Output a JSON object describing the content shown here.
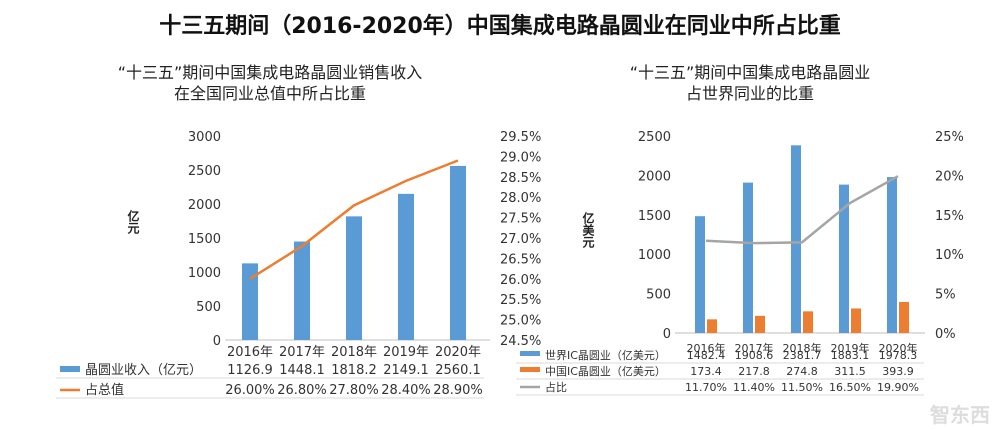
{
  "title": "十三五期间（2016-2020年）中国集成电路晶圆业在同业中所占比重",
  "chart_data": [
    {
      "type": "bar+line",
      "title_lines": [
        "“十三五”期间中国集成电路晶圆业销售收入",
        "在全国同业总值中所占比重"
      ],
      "ylabel": "亿元",
      "categories": [
        "2016年",
        "2017年",
        "2018年",
        "2019年",
        "2020年"
      ],
      "ylim": [
        0,
        3000
      ],
      "yticks": [
        "0",
        "500",
        "1000",
        "1500",
        "2000",
        "2500",
        "3000"
      ],
      "y2lim": [
        24.5,
        29.5
      ],
      "y2ticks": [
        "24.5%",
        "25.0%",
        "25.5%",
        "26.0%",
        "26.5%",
        "27.0%",
        "27.5%",
        "28.0%",
        "28.5%",
        "29.0%",
        "29.5%"
      ],
      "series": [
        {
          "name": "晶圆业收入（亿元）",
          "kind": "bar",
          "axis": "left",
          "color": "#5b9bd5",
          "values": [
            1126.9,
            1448.1,
            1818.2,
            2149.1,
            2560.1
          ],
          "labels": [
            "1126.9",
            "1448.1",
            "1818.2",
            "2149.1",
            "2560.1"
          ]
        },
        {
          "name": "占总值",
          "kind": "line",
          "axis": "right",
          "color": "#ed7d31",
          "values": [
            26.0,
            26.8,
            27.8,
            28.4,
            28.9
          ],
          "labels": [
            "26.00%",
            "26.80%",
            "27.80%",
            "28.40%",
            "28.90%"
          ]
        }
      ],
      "grid": false,
      "legend": "data-table"
    },
    {
      "type": "bar+line",
      "title_lines": [
        "“十三五”期间中国集成电路晶圆业",
        "占世界同业的比重"
      ],
      "ylabel": "亿美元",
      "categories": [
        "2016年",
        "2017年",
        "2018年",
        "2019年",
        "2020年"
      ],
      "ylim": [
        0,
        2500
      ],
      "yticks": [
        "0",
        "500",
        "1000",
        "1500",
        "2000",
        "2500"
      ],
      "y2lim": [
        0,
        25
      ],
      "y2ticks": [
        "0%",
        "5%",
        "10%",
        "15%",
        "20%",
        "25%"
      ],
      "series": [
        {
          "name": "世界IC晶圆业（亿美元）",
          "kind": "bar",
          "axis": "left",
          "color": "#5b9bd5",
          "values": [
            1482.4,
            1908.6,
            2381.7,
            1883.1,
            1978.3
          ],
          "labels": [
            "1482.4",
            "1908.6",
            "2381.7",
            "1883.1",
            "1978.3"
          ]
        },
        {
          "name": "中国IC晶圆业（亿美元）",
          "kind": "bar",
          "axis": "left",
          "color": "#ed7d31",
          "values": [
            173.4,
            217.8,
            274.8,
            311.5,
            393.9
          ],
          "labels": [
            "173.4",
            "217.8",
            "274.8",
            "311.5",
            "393.9"
          ]
        },
        {
          "name": "占比",
          "kind": "line",
          "axis": "right",
          "color": "#a5a5a5",
          "values": [
            11.7,
            11.4,
            11.5,
            16.5,
            19.9
          ],
          "labels": [
            "11.70%",
            "11.40%",
            "11.50%",
            "16.50%",
            "19.90%"
          ]
        }
      ],
      "grid": false,
      "legend": "data-table"
    }
  ],
  "watermark": "智东西"
}
